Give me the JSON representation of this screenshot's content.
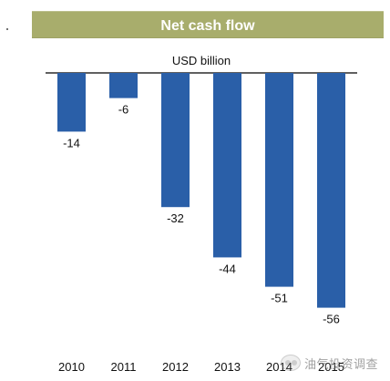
{
  "chart_data": {
    "type": "bar",
    "title": "Net cash flow",
    "unit_label": "USD billion",
    "categories": [
      "2010",
      "2011",
      "2012",
      "2013",
      "2014",
      "2015"
    ],
    "values": [
      -14,
      -6,
      -32,
      -44,
      -51,
      -56
    ],
    "ylim": [
      -60,
      0
    ],
    "grid": false,
    "legend": "none"
  },
  "colors": {
    "banner": "#a8ad6c",
    "bar": "#2a5fa8",
    "axis": "#2b2b2b",
    "text": "#111111"
  },
  "watermark": {
    "text": "油气投资调查",
    "icon": "wechat-icon"
  }
}
